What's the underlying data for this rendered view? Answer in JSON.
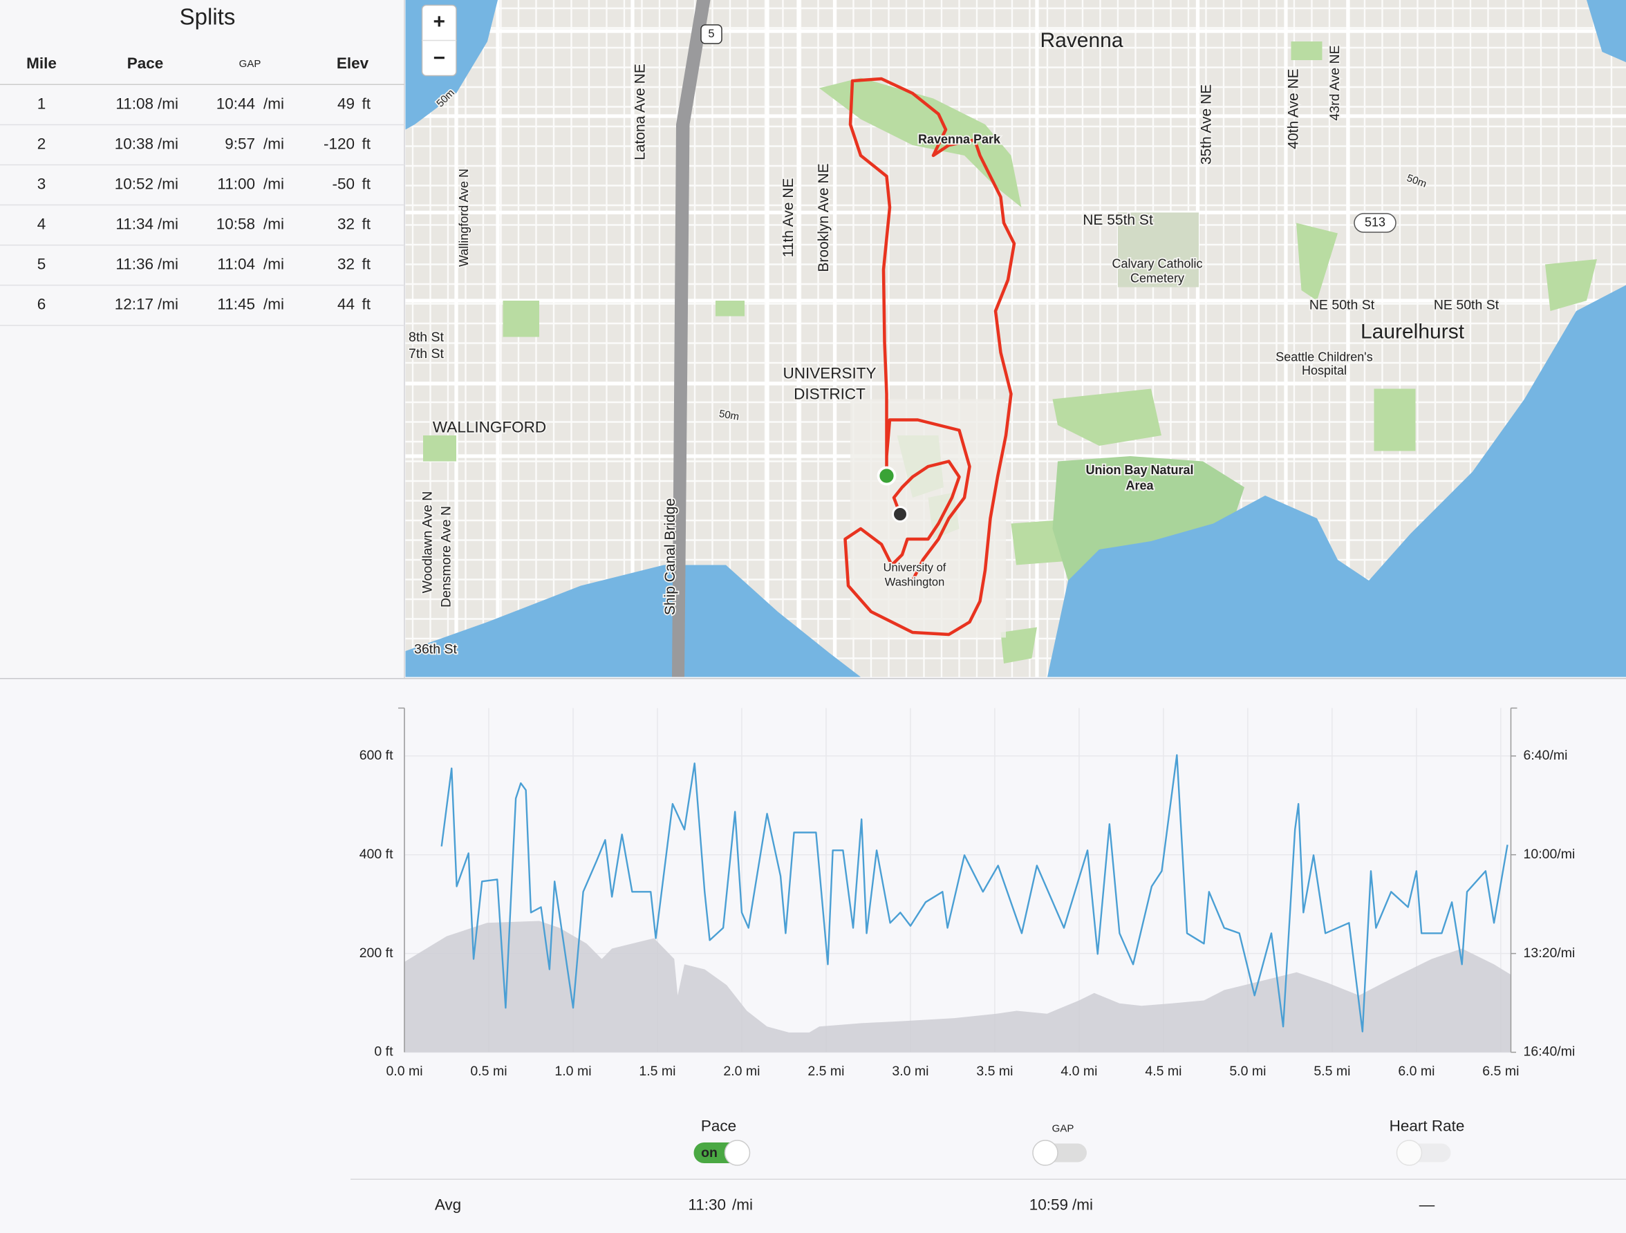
{
  "splits": {
    "title": "Splits",
    "headers": [
      "Mile",
      "Pace",
      "GAP",
      "Elev"
    ],
    "rows": [
      {
        "mile": 1,
        "pace": "11:08",
        "pace_unit": "/mi",
        "gap": "10:44",
        "gap_unit": "/mi",
        "elev": 49,
        "elev_unit": "ft"
      },
      {
        "mile": 2,
        "pace": "10:38",
        "pace_unit": "/mi",
        "gap": "9:57",
        "gap_unit": "/mi",
        "elev": -120,
        "elev_unit": "ft"
      },
      {
        "mile": 3,
        "pace": "10:52",
        "pace_unit": "/mi",
        "gap": "11:00",
        "gap_unit": "/mi",
        "elev": -50,
        "elev_unit": "ft"
      },
      {
        "mile": 4,
        "pace": "11:34",
        "pace_unit": "/mi",
        "gap": "10:58",
        "gap_unit": "/mi",
        "elev": 32,
        "elev_unit": "ft"
      },
      {
        "mile": 5,
        "pace": "11:36",
        "pace_unit": "/mi",
        "gap": "11:04",
        "gap_unit": "/mi",
        "elev": 32,
        "elev_unit": "ft"
      },
      {
        "mile": 6,
        "pace": "12:17",
        "pace_unit": "/mi",
        "gap": "11:45",
        "gap_unit": "/mi",
        "elev": 44,
        "elev_unit": "ft"
      }
    ]
  },
  "map": {
    "zoom_in": "+",
    "zoom_out": "−",
    "interstate": "5",
    "route_shield": "513",
    "labels": [
      "Ravenna",
      "Ravenna Park",
      "UNIVERSITY",
      "DISTRICT",
      "WALLINGFORD",
      "Laurelhurst",
      "Union Bay Natural",
      "Area",
      "Calvary Catholic",
      "Cemetery",
      "Seattle Children's",
      "Hospital",
      "NE 55th St",
      "NE 50th St",
      "NE 50th St",
      "Latona Ave NE",
      "Wallingford Ave N",
      "11th Ave NE",
      "Brooklyn Ave NE",
      "35th Ave NE",
      "40th Ave NE",
      "43rd Ave NE",
      "Ship Canal Bridge",
      "Woodlawn Ave N",
      "Densmore Ave N",
      "University of",
      "Washington",
      "36th St",
      "8th St",
      "7th St",
      "50m",
      "50m",
      "50m"
    ]
  },
  "chart_data": {
    "type": "line",
    "grid": true,
    "xlim": [
      0,
      6.56
    ],
    "xticks": [
      {
        "value": 0,
        "label": "0.0 mi"
      },
      {
        "value": 0.5,
        "label": "0.5 mi"
      },
      {
        "value": 1,
        "label": "1.0 mi"
      },
      {
        "value": 1.5,
        "label": "1.5 mi"
      },
      {
        "value": 2,
        "label": "2.0 mi"
      },
      {
        "value": 2.5,
        "label": "2.5 mi"
      },
      {
        "value": 3,
        "label": "3.0 mi"
      },
      {
        "value": 3.5,
        "label": "3.5 mi"
      },
      {
        "value": 4,
        "label": "4.0 mi"
      },
      {
        "value": 4.5,
        "label": "4.5 mi"
      },
      {
        "value": 5,
        "label": "5.0 mi"
      },
      {
        "value": 5.5,
        "label": "5.5 mi"
      },
      {
        "value": 6,
        "label": "6.0 mi"
      },
      {
        "value": 6.5,
        "label": "6.5 mi"
      }
    ],
    "ylim": [
      0,
      697
    ],
    "yticks": [
      {
        "value": 0,
        "label": "0 ft"
      },
      {
        "value": 200,
        "label": "200 ft"
      },
      {
        "value": 400,
        "label": "400 ft"
      },
      {
        "value": 600,
        "label": "600 ft"
      }
    ],
    "y2lim": [
      1000,
      303
    ],
    "y2ticks": [
      {
        "value": 400,
        "label": "6:40/mi"
      },
      {
        "value": 600,
        "label": "10:00/mi"
      },
      {
        "value": 800,
        "label": "13:20/mi"
      },
      {
        "value": 1000,
        "label": "16:40/mi"
      }
    ],
    "series": [
      {
        "name": "Pace",
        "color": "#4a9fd4",
        "axis": "y2",
        "x": [
          0.22,
          0.28,
          0.31,
          0.38,
          0.41,
          0.46,
          0.55,
          0.6,
          0.66,
          0.69,
          0.72,
          0.75,
          0.81,
          0.86,
          0.89,
          1.0,
          1.06,
          1.14,
          1.19,
          1.23,
          1.29,
          1.35,
          1.46,
          1.49,
          1.59,
          1.66,
          1.72,
          1.78,
          1.81,
          1.89,
          1.96,
          2.0,
          2.04,
          2.15,
          2.23,
          2.26,
          2.31,
          2.44,
          2.51,
          2.54,
          2.6,
          2.66,
          2.71,
          2.74,
          2.8,
          2.88,
          2.94,
          3.0,
          3.09,
          3.19,
          3.22,
          3.32,
          3.43,
          3.52,
          3.66,
          3.75,
          3.91,
          4.05,
          4.11,
          4.18,
          4.24,
          4.32,
          4.43,
          4.49,
          4.58,
          4.64,
          4.74,
          4.77,
          4.86,
          4.95,
          5.04,
          5.14,
          5.21,
          5.28,
          5.3,
          5.33,
          5.39,
          5.46,
          5.6,
          5.68,
          5.73,
          5.76,
          5.85,
          5.95,
          6.0,
          6.03,
          6.15,
          6.21,
          6.27,
          6.3,
          6.41,
          6.46,
          6.54
        ],
        "values": [
          583,
          425,
          664,
          597,
          811,
          654,
          650,
          910,
          486,
          455,
          469,
          717,
          706,
          832,
          654,
          910,
          675,
          612,
          570,
          685,
          559,
          675,
          675,
          769,
          497,
          549,
          415,
          675,
          773,
          748,
          513,
          717,
          748,
          517,
          643,
          759,
          555,
          555,
          822,
          591,
          591,
          748,
          528,
          759,
          591,
          738,
          717,
          744,
          696,
          675,
          748,
          601,
          675,
          622,
          759,
          622,
          748,
          591,
          801,
          538,
          759,
          822,
          664,
          633,
          398,
          759,
          780,
          675,
          748,
          759,
          885,
          759,
          948,
          549,
          497,
          717,
          601,
          759,
          738,
          958,
          633,
          748,
          675,
          706,
          633,
          759,
          759,
          696,
          822,
          675,
          633,
          738,
          580
        ]
      },
      {
        "type": "area",
        "color": "#cfcfd6",
        "axis": "y",
        "x": [
          0,
          0.25,
          0.49,
          0.8,
          0.92,
          1.08,
          1.17,
          1.23,
          1.48,
          1.6,
          1.62,
          1.66,
          1.78,
          1.91,
          2.03,
          2.15,
          2.28,
          2.4,
          2.46,
          2.71,
          2.95,
          3.26,
          3.51,
          3.63,
          3.81,
          4.0,
          4.09,
          4.24,
          4.37,
          4.55,
          4.74,
          4.86,
          5.04,
          5.29,
          5.47,
          5.66,
          5.84,
          6.09,
          6.27,
          6.46,
          6.56
        ],
        "values": [
          183,
          235,
          262,
          266,
          252,
          220,
          189,
          210,
          231,
          189,
          115,
          178,
          168,
          136,
          84,
          52,
          40,
          40,
          52,
          59,
          63,
          69,
          78,
          84,
          78,
          105,
          120,
          99,
          94,
          99,
          105,
          126,
          141,
          162,
          141,
          115,
          147,
          189,
          210,
          178,
          157
        ]
      }
    ]
  },
  "controls": {
    "pace_state": "on",
    "gap": "GAP",
    "heart_rate": "Heart Rate"
  },
  "avg": {
    "label": "Avg",
    "pace": "11:30",
    "pace_unit": "/mi",
    "gap": "10:59",
    "gap_unit": "/mi",
    "heart_rate": "—"
  }
}
